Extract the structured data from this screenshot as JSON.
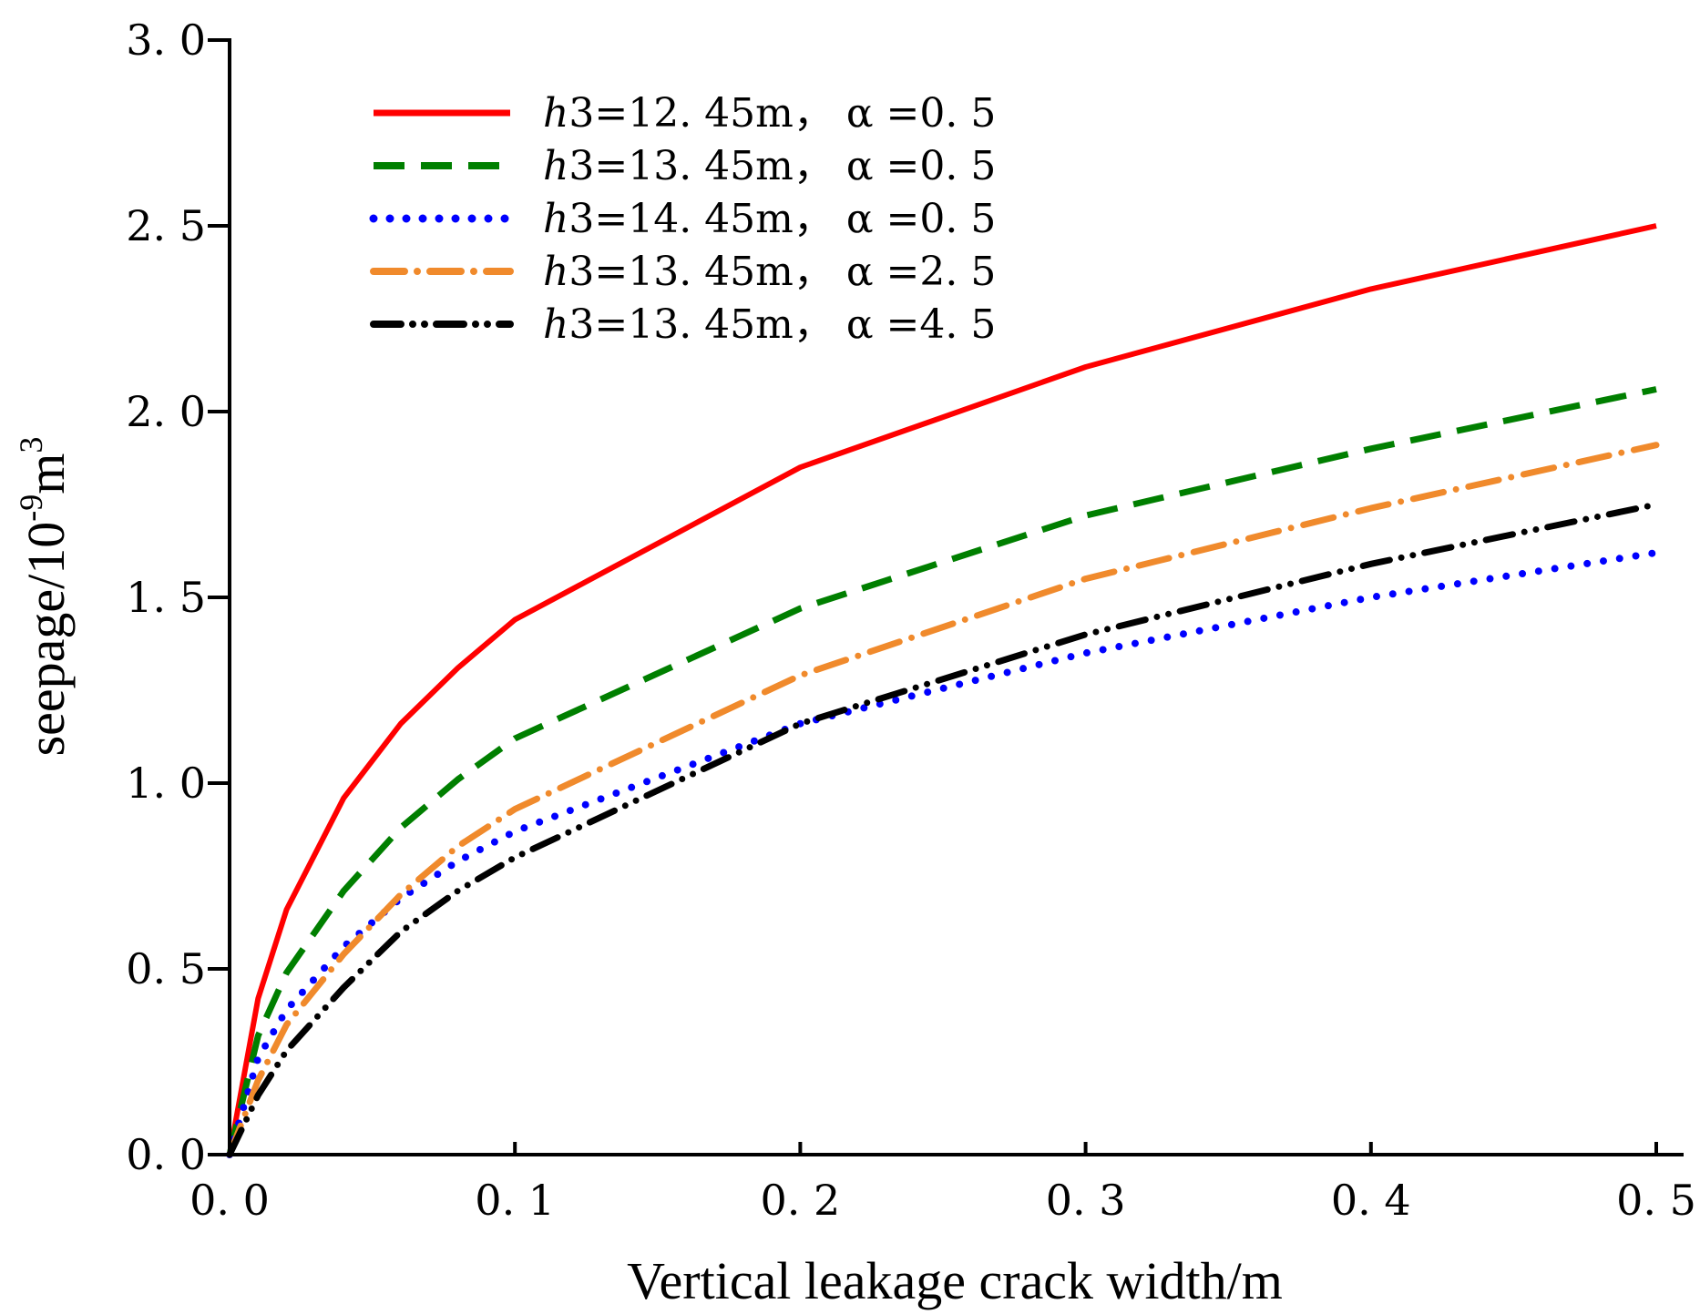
{
  "chart_data": {
    "type": "line",
    "title": "",
    "xlabel": "Vertical leakage crack width/m",
    "ylabel": "seepage/10",
    "ylabel_exp1": "-9",
    "ylabel_unit": "m",
    "ylabel_exp2": "3",
    "xlim": [
      0,
      0.5
    ],
    "ylim": [
      0,
      3.0
    ],
    "x_ticks": [
      0,
      0.1,
      0.2,
      0.3,
      0.4,
      0.5
    ],
    "x_tick_labels": [
      "0. 0",
      "0. 1",
      "0. 2",
      "0. 3",
      "0. 4",
      "0. 5"
    ],
    "y_ticks": [
      0,
      0.5,
      1.0,
      1.5,
      2.0,
      2.5,
      3.0
    ],
    "y_tick_labels": [
      "0. 0",
      "0. 5",
      "1. 0",
      "1. 5",
      "2. 0",
      "2. 5",
      "3. 0"
    ],
    "grid": false,
    "legend_position": "top-left",
    "x": [
      0,
      0.01,
      0.02,
      0.04,
      0.06,
      0.08,
      0.1,
      0.2,
      0.3,
      0.4,
      0.5
    ],
    "series": [
      {
        "name": "h3=12.45m, α=0.5",
        "legend_italic": "h",
        "legend_rest": "3=12. 45m， α =0. 5",
        "color": "#ff0000",
        "style": "solid",
        "values": [
          0,
          0.42,
          0.66,
          0.96,
          1.16,
          1.31,
          1.44,
          1.85,
          2.12,
          2.33,
          2.5
        ]
      },
      {
        "name": "h3=13.45m, α=0.5",
        "legend_italic": "h",
        "legend_rest": "3=13. 45m， α =0. 5",
        "color": "#007f00",
        "style": "dash",
        "values": [
          0,
          0.32,
          0.49,
          0.71,
          0.88,
          1.01,
          1.12,
          1.47,
          1.72,
          1.9,
          2.06
        ]
      },
      {
        "name": "h3=14.45m, α=0.5",
        "legend_italic": "h",
        "legend_rest": "3=14. 45m， α =0. 5",
        "color": "#0000ff",
        "style": "dot",
        "values": [
          0,
          0.26,
          0.39,
          0.56,
          0.69,
          0.79,
          0.87,
          1.16,
          1.35,
          1.5,
          1.62
        ]
      },
      {
        "name": "h3=13.45m, α=2.5",
        "legend_italic": "h",
        "legend_rest": "3=13. 45m， α =2. 5",
        "color": "#f08a2c",
        "style": "dashdot",
        "values": [
          0,
          0.2,
          0.35,
          0.54,
          0.7,
          0.83,
          0.93,
          1.29,
          1.55,
          1.74,
          1.91
        ]
      },
      {
        "name": "h3=13.45m, α=4.5",
        "legend_italic": "h",
        "legend_rest": "3=13. 45m， α =4. 5",
        "color": "#000000",
        "style": "dashdotdot",
        "values": [
          0,
          0.16,
          0.28,
          0.45,
          0.6,
          0.71,
          0.8,
          1.16,
          1.4,
          1.59,
          1.75
        ]
      }
    ]
  }
}
